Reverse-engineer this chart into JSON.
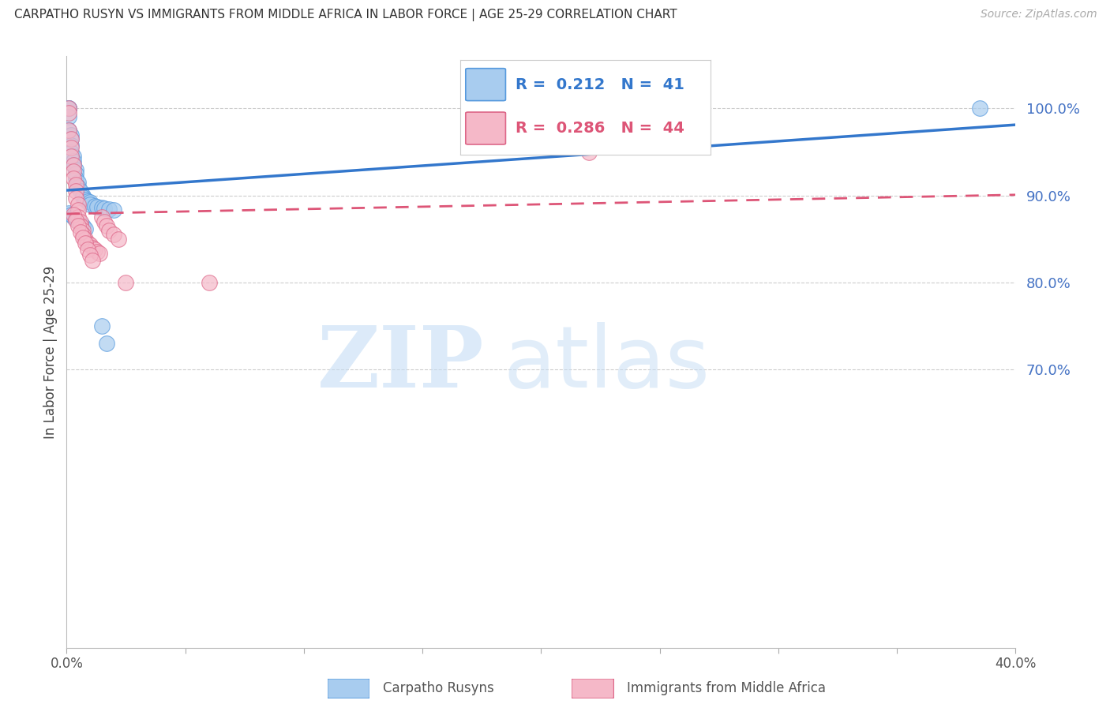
{
  "title": "CARPATHO RUSYN VS IMMIGRANTS FROM MIDDLE AFRICA IN LABOR FORCE | AGE 25-29 CORRELATION CHART",
  "source": "Source: ZipAtlas.com",
  "ylabel": "In Labor Force | Age 25-29",
  "blue_label": "Carpatho Rusyns",
  "pink_label": "Immigrants from Middle Africa",
  "blue_R": 0.212,
  "blue_N": 41,
  "pink_R": 0.286,
  "pink_N": 44,
  "blue_color": "#a8ccef",
  "pink_color": "#f5b8c8",
  "blue_edge_color": "#5599dd",
  "pink_edge_color": "#dd6688",
  "blue_line_color": "#3377cc",
  "pink_line_color": "#dd5577",
  "xlim": [
    0.0,
    0.4
  ],
  "ylim": [
    0.38,
    1.06
  ],
  "right_yticks": [
    0.7,
    0.8,
    0.9,
    1.0
  ],
  "right_ytick_labels": [
    "70.0%",
    "80.0%",
    "90.0%",
    "100.0%"
  ],
  "blue_x": [
    0.001,
    0.001,
    0.001,
    0.001,
    0.001,
    0.002,
    0.002,
    0.002,
    0.002,
    0.003,
    0.003,
    0.003,
    0.004,
    0.004,
    0.004,
    0.005,
    0.005,
    0.006,
    0.007,
    0.007,
    0.008,
    0.009,
    0.01,
    0.01,
    0.012,
    0.013,
    0.015,
    0.016,
    0.018,
    0.02,
    0.001,
    0.002,
    0.003,
    0.004,
    0.005,
    0.006,
    0.007,
    0.008,
    0.015,
    0.017,
    0.385
  ],
  "blue_y": [
    1.0,
    1.0,
    1.0,
    0.99,
    0.975,
    0.97,
    0.965,
    0.958,
    0.95,
    0.945,
    0.94,
    0.935,
    0.93,
    0.925,
    0.92,
    0.915,
    0.91,
    0.905,
    0.9,
    0.898,
    0.895,
    0.893,
    0.892,
    0.89,
    0.888,
    0.887,
    0.886,
    0.885,
    0.884,
    0.883,
    0.88,
    0.878,
    0.875,
    0.873,
    0.87,
    0.868,
    0.865,
    0.862,
    0.75,
    0.73,
    1.0
  ],
  "pink_x": [
    0.001,
    0.001,
    0.001,
    0.002,
    0.002,
    0.002,
    0.003,
    0.003,
    0.003,
    0.004,
    0.004,
    0.004,
    0.005,
    0.005,
    0.005,
    0.006,
    0.006,
    0.007,
    0.007,
    0.008,
    0.009,
    0.01,
    0.011,
    0.012,
    0.013,
    0.014,
    0.015,
    0.016,
    0.017,
    0.018,
    0.02,
    0.022,
    0.025,
    0.003,
    0.004,
    0.005,
    0.006,
    0.007,
    0.008,
    0.009,
    0.01,
    0.011,
    0.06,
    0.22
  ],
  "pink_y": [
    1.0,
    0.995,
    0.975,
    0.965,
    0.955,
    0.945,
    0.935,
    0.928,
    0.92,
    0.912,
    0.905,
    0.897,
    0.89,
    0.883,
    0.875,
    0.87,
    0.865,
    0.86,
    0.855,
    0.85,
    0.845,
    0.843,
    0.84,
    0.838,
    0.835,
    0.833,
    0.875,
    0.87,
    0.865,
    0.86,
    0.855,
    0.85,
    0.8,
    0.878,
    0.872,
    0.865,
    0.858,
    0.852,
    0.845,
    0.838,
    0.832,
    0.825,
    0.8,
    0.95
  ]
}
